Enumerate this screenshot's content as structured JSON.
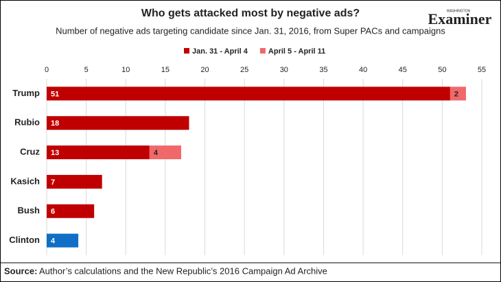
{
  "chart_data": {
    "type": "bar",
    "orientation": "horizontal",
    "stacked": true,
    "title": "Who gets attacked most by negative ads?",
    "subtitle": "Number of negative ads targeting candidate since Jan. 31, 2016, from Super PACs and campaigns",
    "logo": {
      "small": "WASHINGTON",
      "name": "Examiner"
    },
    "categories": [
      "Trump",
      "Rubio",
      "Cruz",
      "Kasich",
      "Bush",
      "Clinton"
    ],
    "series": [
      {
        "name": "Jan. 31 - April 4",
        "color": "#c00000",
        "colors": [
          "#c00000",
          "#c00000",
          "#c00000",
          "#c00000",
          "#c00000",
          "#0f6fc6"
        ],
        "values": [
          51,
          18,
          13,
          7,
          6,
          4
        ]
      },
      {
        "name": "April 5 - April 11",
        "color": "#f0686a",
        "values": [
          2,
          null,
          4,
          null,
          null,
          null
        ]
      }
    ],
    "xlim": [
      0,
      55
    ],
    "xticks": [
      0,
      5,
      10,
      15,
      20,
      25,
      30,
      35,
      40,
      45,
      50,
      55
    ],
    "grid": true,
    "source_label": "Source:",
    "source": "Author’s calculations and the New Republic’s 2016 Campaign Ad Archive"
  }
}
